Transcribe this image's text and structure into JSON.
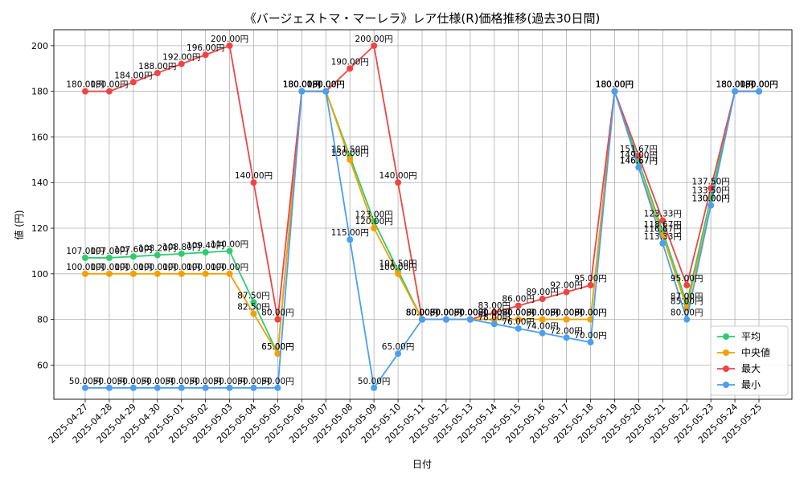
{
  "chart_data": {
    "type": "line",
    "title": "《バージェストマ・マーレラ》レア仕様(R)価格推移(過去30日間)",
    "xlabel": "日付",
    "ylabel": "値 (円)",
    "ylim": [
      45,
      207
    ],
    "yticks": [
      60,
      80,
      100,
      120,
      140,
      160,
      180,
      200
    ],
    "grid": true,
    "legend_position": "lower-right",
    "label_suffix": "円",
    "categories": [
      "2025-04-27",
      "2025-04-28",
      "2025-04-29",
      "2025-04-30",
      "2025-05-01",
      "2025-05-02",
      "2025-05-03",
      "2025-05-04",
      "2025-05-05",
      "2025-05-06",
      "2025-05-07",
      "2025-05-08",
      "2025-05-09",
      "2025-05-10",
      "2025-05-11",
      "2025-05-12",
      "2025-05-13",
      "2025-05-14",
      "2025-05-15",
      "2025-05-16",
      "2025-05-17",
      "2025-05-18",
      "2025-05-19",
      "2025-05-20",
      "2025-05-21",
      "2025-05-22",
      "2025-05-23",
      "2025-05-24",
      "2025-05-25"
    ],
    "series": [
      {
        "name": "平均",
        "color": "#2ecc71",
        "values": [
          107.0,
          107.0,
          107.6,
          108.2,
          108.8,
          109.4,
          110.0,
          87.5,
          65.0,
          180.0,
          180.0,
          151.5,
          123.0,
          101.5,
          80.0,
          80.0,
          80.0,
          80.0,
          80.0,
          80.0,
          80.0,
          80.0,
          180.0,
          149.0,
          118.67,
          87.0,
          133.5,
          180.0,
          180.0
        ]
      },
      {
        "name": "中央値",
        "color": "#f5a000",
        "values": [
          100.0,
          100.0,
          100.0,
          100.0,
          100.0,
          100.0,
          100.0,
          82.5,
          65.0,
          180.0,
          180.0,
          150.0,
          120.0,
          100.0,
          80.0,
          80.0,
          80.0,
          80.0,
          80.0,
          80.0,
          80.0,
          80.0,
          180.0,
          146.67,
          116.67,
          85.0,
          130.0,
          180.0,
          180.0
        ]
      },
      {
        "name": "最大",
        "color": "#ef4444",
        "values": [
          180.0,
          180.0,
          184.0,
          188.0,
          192.0,
          196.0,
          200.0,
          140.0,
          80.0,
          180.0,
          180.0,
          190.0,
          200.0,
          140.0,
          80.0,
          80.0,
          80.0,
          83.0,
          86.0,
          89.0,
          92.0,
          95.0,
          180.0,
          151.67,
          123.33,
          95.0,
          137.5,
          180.0,
          180.0
        ]
      },
      {
        "name": "最小",
        "color": "#4a9ff0",
        "values": [
          50.0,
          50.0,
          50.0,
          50.0,
          50.0,
          50.0,
          50.0,
          50.0,
          50.0,
          180.0,
          180.0,
          115.0,
          50.0,
          65.0,
          80.0,
          80.0,
          80.0,
          78.0,
          76.0,
          74.0,
          72.0,
          70.0,
          180.0,
          146.67,
          113.33,
          80.0,
          130.0,
          180.0,
          180.0
        ]
      }
    ]
  }
}
